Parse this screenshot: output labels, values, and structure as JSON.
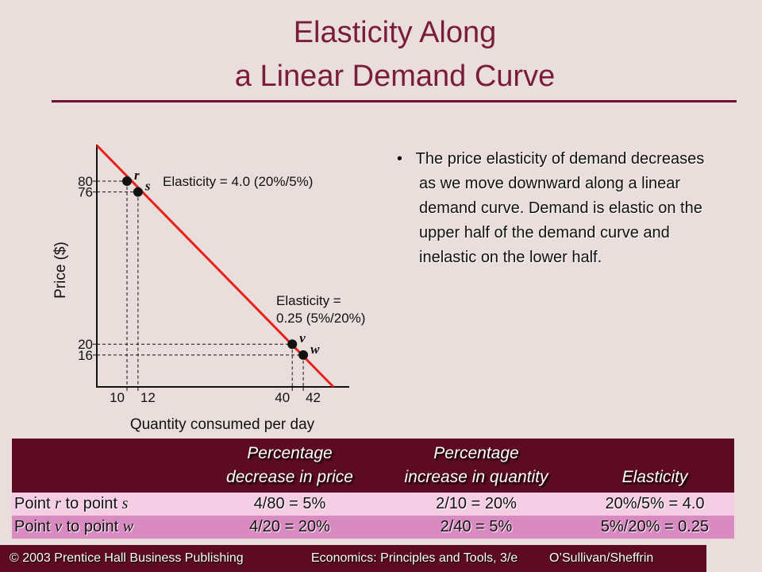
{
  "title": [
    "Elasticity Along",
    "a Linear Demand Curve"
  ],
  "chart": {
    "type": "line",
    "y_label": "Price ($)",
    "x_label": "Quantity consumed per day",
    "xticks": [
      10,
      12,
      40,
      42
    ],
    "yticks": [
      80,
      76,
      20,
      16
    ],
    "color": "#e8201c",
    "points": [
      {
        "name": "r",
        "x": 10,
        "y": 80
      },
      {
        "name": "s",
        "x": 12,
        "y": 76
      },
      {
        "name": "v",
        "x": 40,
        "y": 20
      },
      {
        "name": "w",
        "x": 42,
        "y": 16
      }
    ],
    "annotations": [
      "Elasticity = 4.0 (20%/5%)",
      "Elasticity =",
      "0.25 (5%/20%)"
    ]
  },
  "bullet": "The price elasticity of demand decreases as we move downward along a linear demand curve.  Demand is elastic on the upper half of the demand curve and inelastic on the lower half.",
  "table": {
    "header": [
      [
        "Percentage",
        "decrease in price"
      ],
      [
        "Percentage",
        "increase in quantity"
      ],
      [
        "Elasticity"
      ]
    ],
    "rows": [
      [
        [
          "Point ",
          "r",
          " to point ",
          "s"
        ],
        "4/80 = 5%",
        "2/10 = 20%",
        "20%/5% = 4.0"
      ],
      [
        [
          "Point ",
          "v",
          " to point ",
          "w"
        ],
        "4/20 = 20%",
        "2/40 = 5%",
        "5%/20% = 0.25"
      ]
    ]
  },
  "footer": [
    "© 2003 Prentice Hall Business Publishing",
    "Economics: Principles and Tools, 3/e",
    "O’Sullivan/Sheffrin"
  ]
}
